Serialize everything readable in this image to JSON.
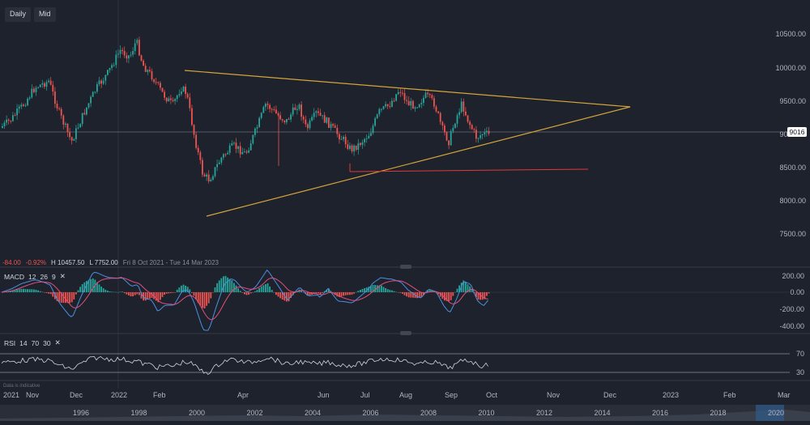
{
  "toolbar": {
    "interval": "Daily",
    "price_type": "Mid"
  },
  "price_axis": {
    "ticks": [
      "10500.00",
      "10000.00",
      "9500.00",
      "9000.00",
      "8500.00",
      "8000.00",
      "7500.00"
    ]
  },
  "current_price": "9016",
  "ohlc": {
    "change": "-84.00",
    "change_pct": "-0.92%",
    "high": "H 10457.50",
    "low": "L 7752.00",
    "range": "Fri 8 Oct 2021 - Tue 14 Mar 2023"
  },
  "macd": {
    "name": "MACD",
    "fast": "12",
    "slow": "26",
    "signal": "9",
    "ticks": [
      "200.00",
      "0.00",
      "-200.00",
      "-400.00"
    ]
  },
  "rsi": {
    "name": "RSI",
    "length": "14",
    "upper": "70",
    "lower": "30",
    "ticks": [
      "70",
      "30"
    ]
  },
  "time_axis": {
    "labels": [
      "2021",
      "Nov",
      "Dec",
      "2022",
      "Feb",
      "Apr",
      "Jun",
      "Jul",
      "Aug",
      "Sep",
      "Oct",
      "Nov",
      "Dec",
      "2023",
      "Feb",
      "Mar"
    ]
  },
  "navigator": {
    "years": [
      "1996",
      "1998",
      "2000",
      "2002",
      "2004",
      "2006",
      "2008",
      "2010",
      "2012",
      "2014",
      "2016",
      "2018",
      "2020"
    ]
  },
  "notice": "Data is indicative",
  "colors": {
    "up": "#26a69a",
    "down": "#ef5350",
    "triangle": "#d4a53a",
    "support": "#e03a3a",
    "background": "#1e222d"
  }
}
